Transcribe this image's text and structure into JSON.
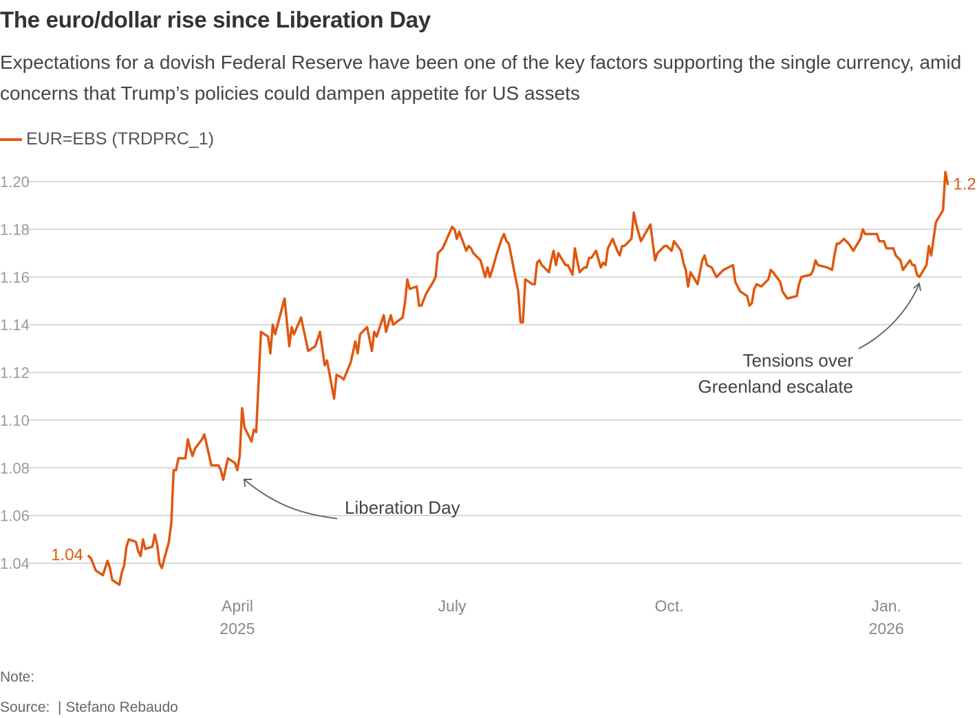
{
  "header": {
    "title": "The euro/dollar rise since Liberation Day",
    "subtitle": "Expectations for a dovish Federal Reserve have been one of the key factors supporting the single currency, amid concerns that Trump’s policies could dampen appetite for US assets"
  },
  "footer": {
    "note": "Note:",
    "source_label": "Source:",
    "source_credit": "| Stefano Rebaudo"
  },
  "colors": {
    "series": "#e0570e",
    "grid": "#cccccc",
    "annotation": "#666666"
  },
  "chart_data": {
    "type": "line",
    "title": "The euro/dollar rise since Liberation Day",
    "xlabel": "",
    "ylabel": "",
    "x_unit": "days relative to 2025-04-01",
    "xlim": [
      -63,
      302
    ],
    "ylim": [
      1.04,
      1.2
    ],
    "grid": true,
    "legend_placement": "top-left",
    "y_ticks": [
      {
        "value": 1.2,
        "label": "1.20"
      },
      {
        "value": 1.18,
        "label": "1.18"
      },
      {
        "value": 1.16,
        "label": "1.16"
      },
      {
        "value": 1.14,
        "label": "1.14"
      },
      {
        "value": 1.12,
        "label": "1.12"
      },
      {
        "value": 1.1,
        "label": "1.10"
      },
      {
        "value": 1.08,
        "label": "1.08"
      },
      {
        "value": 1.06,
        "label": "1.06"
      },
      {
        "value": 1.04,
        "label": "1.04"
      }
    ],
    "x_ticks": [
      {
        "value": 0,
        "label": "April",
        "sublabel": "2025"
      },
      {
        "value": 91,
        "label": "July",
        "sublabel": ""
      },
      {
        "value": 183,
        "label": "Oct.",
        "sublabel": ""
      },
      {
        "value": 275,
        "label": "Jan.",
        "sublabel": "2026"
      }
    ],
    "series": [
      {
        "name": "EUR=EBS (TRDPRC_1)",
        "x": [
          -63,
          -62,
          -60,
          -57,
          -55,
          -54,
          -53,
          -50,
          -49,
          -48,
          -47,
          -46,
          -43,
          -42,
          -41,
          -40,
          -39,
          -36,
          -35,
          -34,
          -33,
          -32,
          -29,
          -28,
          -27,
          -26,
          -25,
          -22,
          -21,
          -20,
          -19,
          -18,
          -15,
          -14,
          -11,
          -8,
          -7,
          -6,
          -4,
          -1,
          0,
          1,
          2,
          3,
          6,
          7,
          8,
          10,
          13,
          14,
          15,
          16,
          20,
          22,
          23,
          24,
          27,
          30,
          33,
          35,
          37,
          38,
          41,
          42,
          44,
          45,
          48,
          50,
          51,
          52,
          55,
          57,
          58,
          59,
          62,
          63,
          65,
          66,
          70,
          71,
          72,
          73,
          76,
          77,
          78,
          80,
          83,
          84,
          85,
          87,
          91,
          92,
          93,
          94,
          97,
          98,
          99,
          100,
          103,
          105,
          106,
          107,
          108,
          110,
          112,
          113,
          114,
          115,
          119,
          120,
          121,
          122,
          125,
          126,
          127,
          128,
          129,
          132,
          133,
          134,
          135,
          136,
          139,
          140,
          142,
          143,
          145,
          147,
          148,
          149,
          150,
          152,
          154,
          155,
          156,
          157,
          159,
          161,
          162,
          163,
          164,
          167,
          168,
          169,
          171,
          175,
          177,
          178,
          181,
          182,
          184,
          185,
          188,
          189,
          190,
          191,
          192,
          195,
          197,
          198,
          199,
          201,
          203,
          206,
          210,
          211,
          213,
          216,
          217,
          218,
          219,
          220,
          222,
          224,
          225,
          226,
          227,
          230,
          231,
          233,
          237,
          238,
          239,
          243,
          244,
          245,
          246,
          250,
          252,
          253,
          254,
          255,
          257,
          259,
          261,
          264,
          265,
          266,
          268,
          271,
          272,
          274,
          275,
          278,
          279,
          281,
          282,
          285,
          286,
          287,
          288,
          289,
          292,
          293,
          294,
          296,
          299,
          300,
          301
        ],
        "y": [
          1.043,
          1.042,
          1.037,
          1.035,
          1.041,
          1.038,
          1.033,
          1.031,
          1.036,
          1.039,
          1.047,
          1.05,
          1.049,
          1.045,
          1.043,
          1.05,
          1.046,
          1.047,
          1.052,
          1.048,
          1.04,
          1.038,
          1.049,
          1.057,
          1.079,
          1.079,
          1.084,
          1.084,
          1.092,
          1.088,
          1.085,
          1.088,
          1.092,
          1.094,
          1.081,
          1.081,
          1.079,
          1.075,
          1.084,
          1.082,
          1.079,
          1.085,
          1.105,
          1.097,
          1.091,
          1.096,
          1.095,
          1.137,
          1.135,
          1.128,
          1.14,
          1.136,
          1.151,
          1.131,
          1.139,
          1.136,
          1.143,
          1.129,
          1.131,
          1.137,
          1.123,
          1.125,
          1.109,
          1.119,
          1.118,
          1.117,
          1.124,
          1.133,
          1.128,
          1.136,
          1.139,
          1.129,
          1.137,
          1.135,
          1.144,
          1.137,
          1.144,
          1.14,
          1.143,
          1.149,
          1.159,
          1.155,
          1.156,
          1.148,
          1.148,
          1.153,
          1.158,
          1.16,
          1.17,
          1.172,
          1.181,
          1.18,
          1.176,
          1.179,
          1.171,
          1.173,
          1.172,
          1.17,
          1.167,
          1.16,
          1.164,
          1.16,
          1.163,
          1.17,
          1.176,
          1.178,
          1.175,
          1.174,
          1.154,
          1.141,
          1.141,
          1.159,
          1.157,
          1.157,
          1.166,
          1.167,
          1.165,
          1.162,
          1.167,
          1.171,
          1.165,
          1.17,
          1.165,
          1.165,
          1.161,
          1.172,
          1.162,
          1.164,
          1.164,
          1.168,
          1.168,
          1.171,
          1.164,
          1.166,
          1.165,
          1.172,
          1.176,
          1.171,
          1.169,
          1.173,
          1.173,
          1.176,
          1.187,
          1.182,
          1.175,
          1.182,
          1.167,
          1.17,
          1.173,
          1.173,
          1.171,
          1.175,
          1.171,
          1.166,
          1.163,
          1.156,
          1.162,
          1.157,
          1.167,
          1.169,
          1.165,
          1.164,
          1.16,
          1.163,
          1.165,
          1.158,
          1.154,
          1.152,
          1.148,
          1.149,
          1.155,
          1.157,
          1.156,
          1.158,
          1.159,
          1.163,
          1.162,
          1.158,
          1.154,
          1.151,
          1.152,
          1.157,
          1.16,
          1.161,
          1.163,
          1.167,
          1.165,
          1.164,
          1.163,
          1.169,
          1.174,
          1.174,
          1.176,
          1.174,
          1.171,
          1.176,
          1.18,
          1.178,
          1.178,
          1.178,
          1.175,
          1.175,
          1.172,
          1.172,
          1.169,
          1.167,
          1.163,
          1.167,
          1.165,
          1.165,
          1.161,
          1.16,
          1.165,
          1.173,
          1.169,
          1.183,
          1.188,
          1.204,
          1.199
        ]
      }
    ],
    "data_labels": [
      {
        "x": -63,
        "value": 1.04,
        "label": "1.04"
      },
      {
        "x": 301,
        "value": 1.2,
        "label": "1.2"
      }
    ],
    "annotations": [
      {
        "text": "Liberation Day",
        "target_x": 2,
        "target_y": 1.08
      },
      {
        "text_line1": "Tensions over",
        "text_line2": "Greenland escalate",
        "target_x": 289,
        "target_y": 1.158
      }
    ]
  }
}
